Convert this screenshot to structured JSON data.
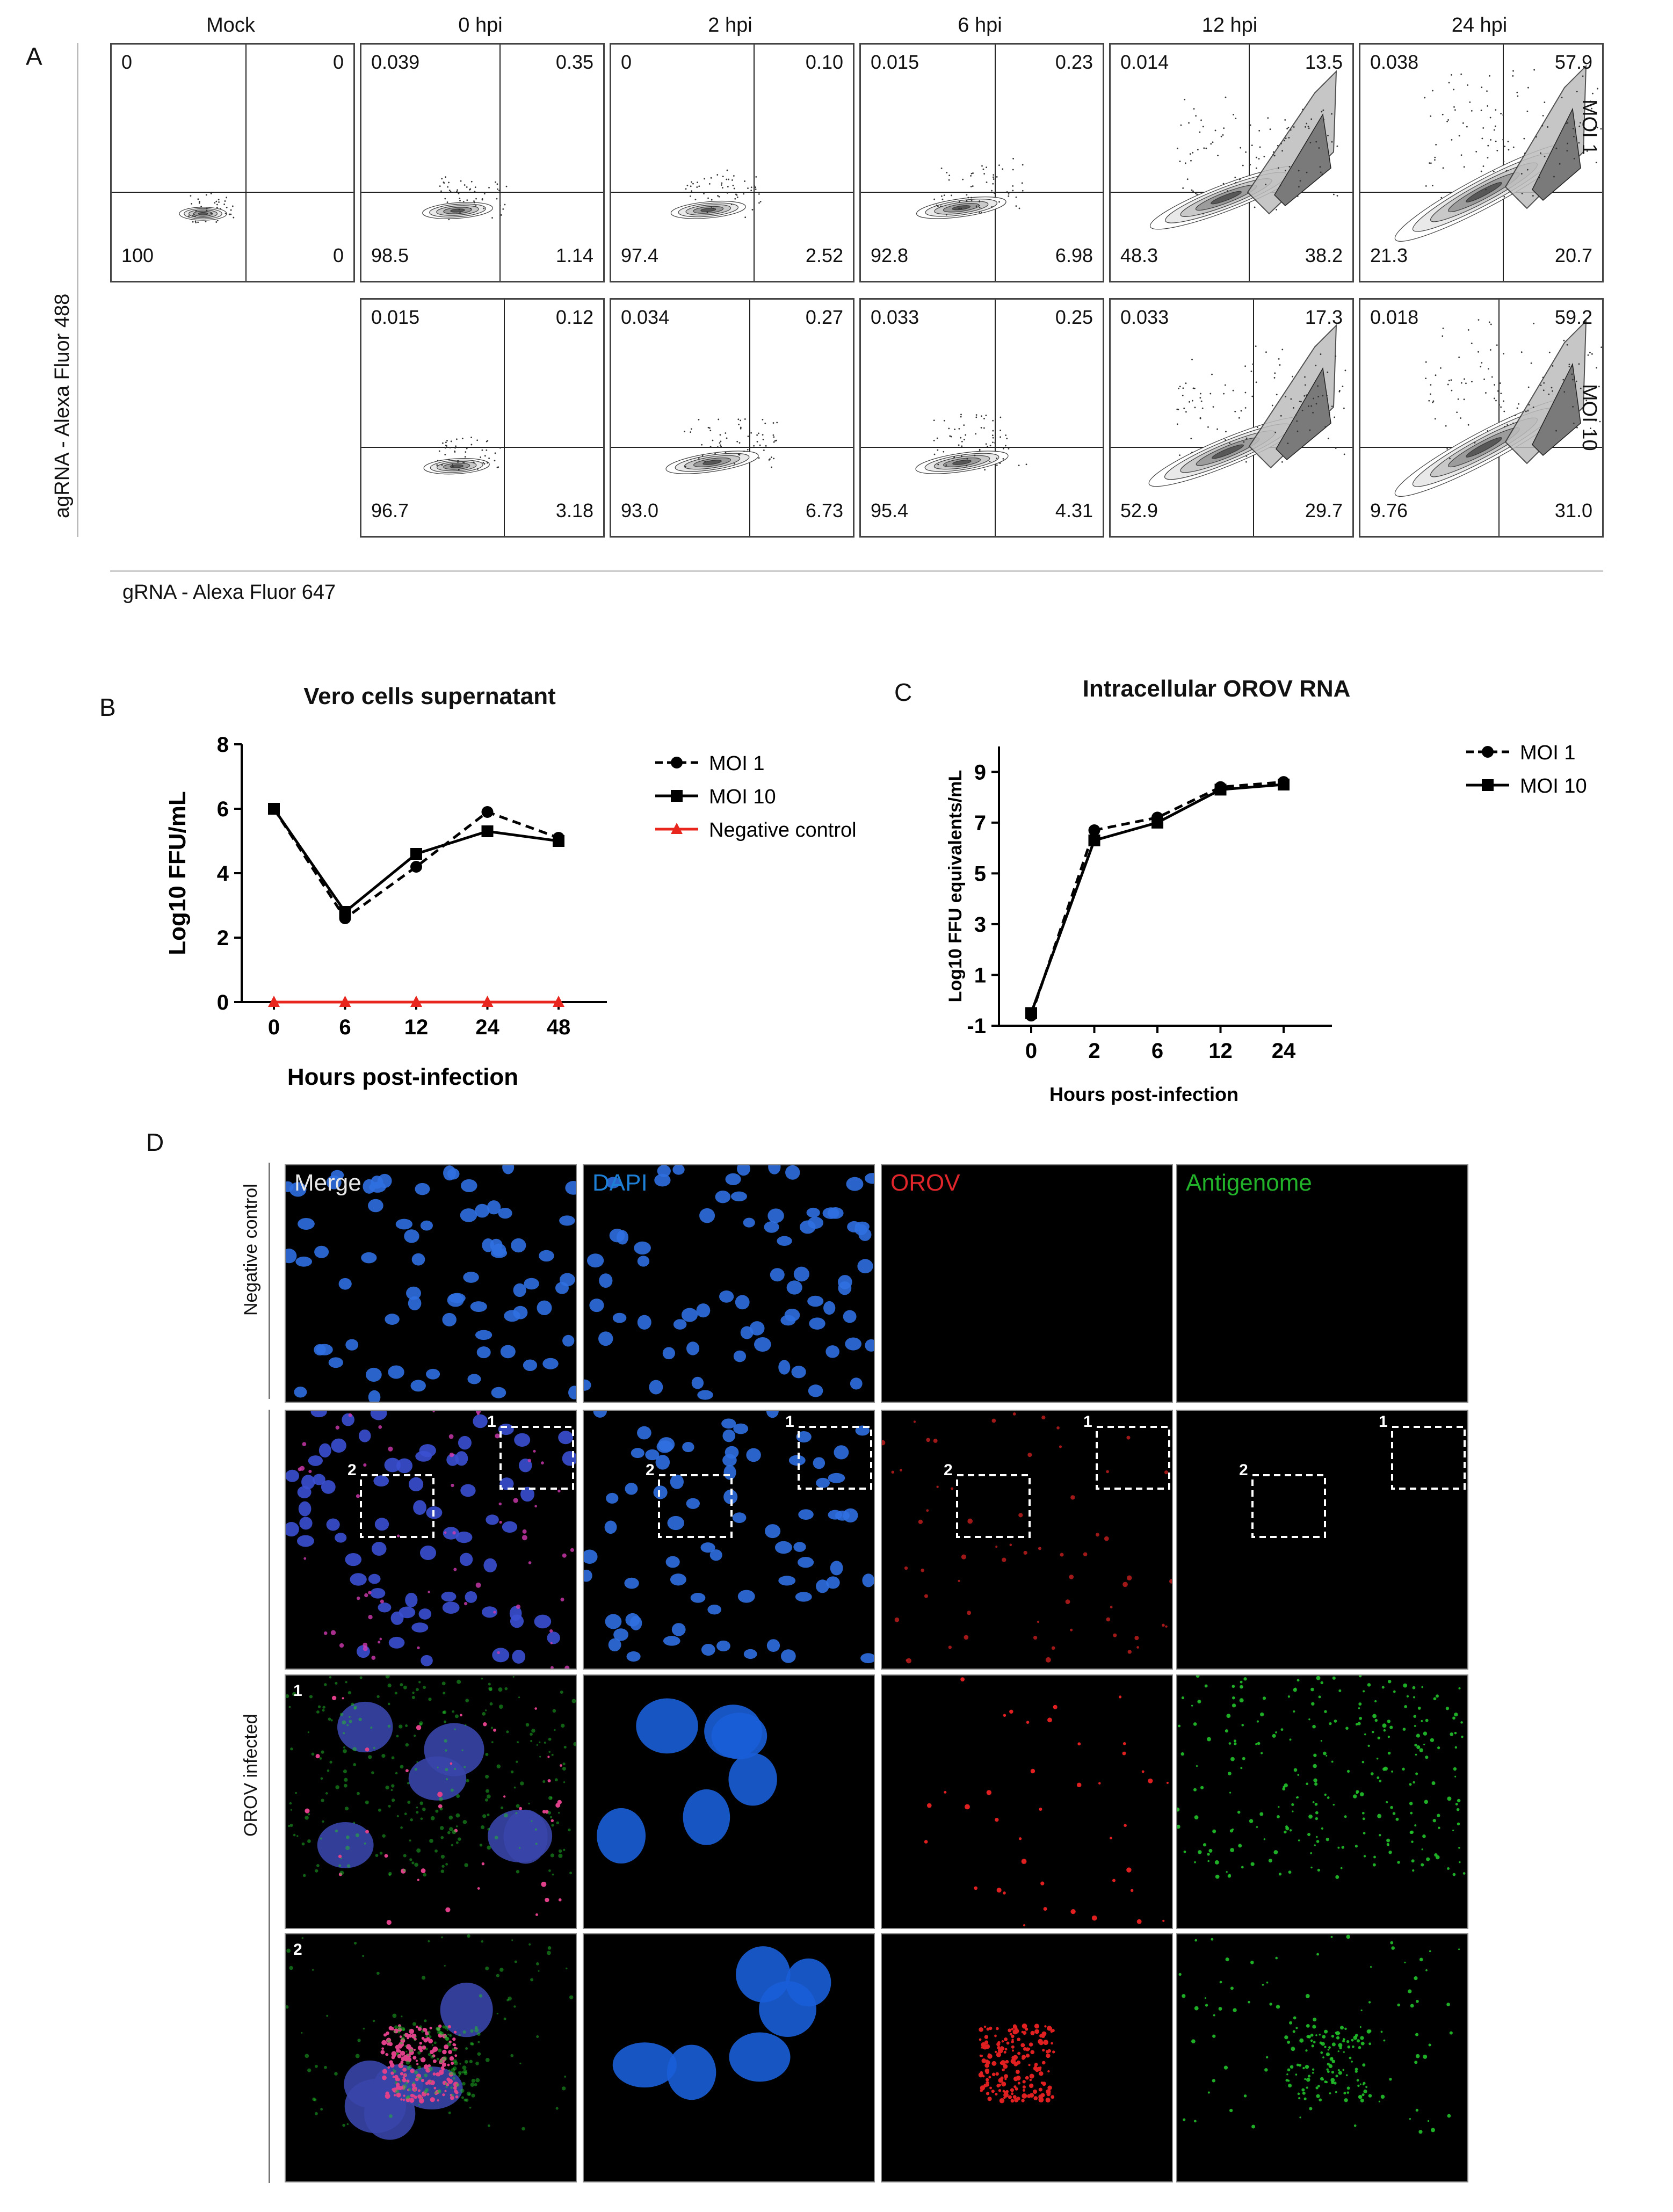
{
  "panel_labels": {
    "a": "A",
    "b": "B",
    "c": "C",
    "d": "D"
  },
  "flow": {
    "columns": [
      "Mock",
      "0 hpi",
      "2 hpi",
      "6 hpi",
      "12 hpi",
      "24 hpi"
    ],
    "row_labels": [
      "MOI 1",
      "MOI 10"
    ],
    "y_axis_label": "agRNA - Alexa Fluor 488",
    "x_axis_label": "gRNA - Alexa Fluor 647",
    "moi1": [
      {
        "ul": "0",
        "ur": "0",
        "ll": "100",
        "lr": "0"
      },
      {
        "ul": "0.039",
        "ur": "0.35",
        "ll": "98.5",
        "lr": "1.14"
      },
      {
        "ul": "0",
        "ur": "0.10",
        "ll": "97.4",
        "lr": "2.52"
      },
      {
        "ul": "0.015",
        "ur": "0.23",
        "ll": "92.8",
        "lr": "6.98"
      },
      {
        "ul": "0.014",
        "ur": "13.5",
        "ll": "48.3",
        "lr": "38.2"
      },
      {
        "ul": "0.038",
        "ur": "57.9",
        "ll": "21.3",
        "lr": "20.7"
      }
    ],
    "moi10": [
      {
        "ul": "0.015",
        "ur": "0.12",
        "ll": "96.7",
        "lr": "3.18"
      },
      {
        "ul": "0.034",
        "ur": "0.27",
        "ll": "93.0",
        "lr": "6.73"
      },
      {
        "ul": "0.033",
        "ur": "0.25",
        "ll": "95.4",
        "lr": "4.31"
      },
      {
        "ul": "0.033",
        "ur": "17.3",
        "ll": "52.9",
        "lr": "29.7"
      },
      {
        "ul": "0.018",
        "ur": "59.2",
        "ll": "9.76",
        "lr": "31.0"
      }
    ]
  },
  "chart_data": [
    {
      "type": "line",
      "title": "Vero cells supernatant",
      "xlabel": "Hours post-infection",
      "ylabel": "Log10 FFU/mL",
      "categories": [
        "0",
        "6",
        "12",
        "24",
        "48"
      ],
      "ylim": [
        0,
        8
      ],
      "yticks": [
        "0",
        "2",
        "4",
        "6",
        "8"
      ],
      "legend_position": "right",
      "series": [
        {
          "name": "MOI 1",
          "values": [
            6.0,
            2.6,
            4.2,
            5.9,
            5.1
          ],
          "color": "#000000",
          "dash": true,
          "marker": "circle"
        },
        {
          "name": "MOI 10",
          "values": [
            6.0,
            2.8,
            4.6,
            5.3,
            5.0
          ],
          "color": "#000000",
          "dash": false,
          "marker": "square"
        },
        {
          "name": "Negative control",
          "values": [
            0,
            0,
            0,
            0,
            0
          ],
          "color": "#e8261e",
          "dash": false,
          "marker": "triangle"
        }
      ]
    },
    {
      "type": "line",
      "title": "Intracellular OROV RNA",
      "xlabel": "Hours post-infection",
      "ylabel": "Log10 FFU equivalents/mL",
      "categories": [
        "0",
        "2",
        "6",
        "12",
        "24"
      ],
      "ylim": [
        -1,
        10
      ],
      "yticks": [
        "-1",
        "1",
        "3",
        "5",
        "7",
        "9"
      ],
      "legend_position": "right",
      "series": [
        {
          "name": "MOI 1",
          "values": [
            -0.6,
            6.7,
            7.2,
            8.4,
            8.6
          ],
          "color": "#000000",
          "dash": true,
          "marker": "circle"
        },
        {
          "name": "MOI 10",
          "values": [
            -0.5,
            6.3,
            7.0,
            8.3,
            8.5
          ],
          "color": "#000000",
          "dash": false,
          "marker": "square"
        }
      ]
    }
  ],
  "microscopy": {
    "channels": [
      {
        "label": "Merge",
        "color": "#e8e8e8"
      },
      {
        "label": "DAPI",
        "color": "#1e7fd6"
      },
      {
        "label": "OROV",
        "color": "#e0262a"
      },
      {
        "label": "Antigenome",
        "color": "#22b22a"
      }
    ],
    "row_labels": [
      "Negative control",
      "OROV infected"
    ],
    "zoom_labels": [
      "1",
      "2"
    ]
  }
}
